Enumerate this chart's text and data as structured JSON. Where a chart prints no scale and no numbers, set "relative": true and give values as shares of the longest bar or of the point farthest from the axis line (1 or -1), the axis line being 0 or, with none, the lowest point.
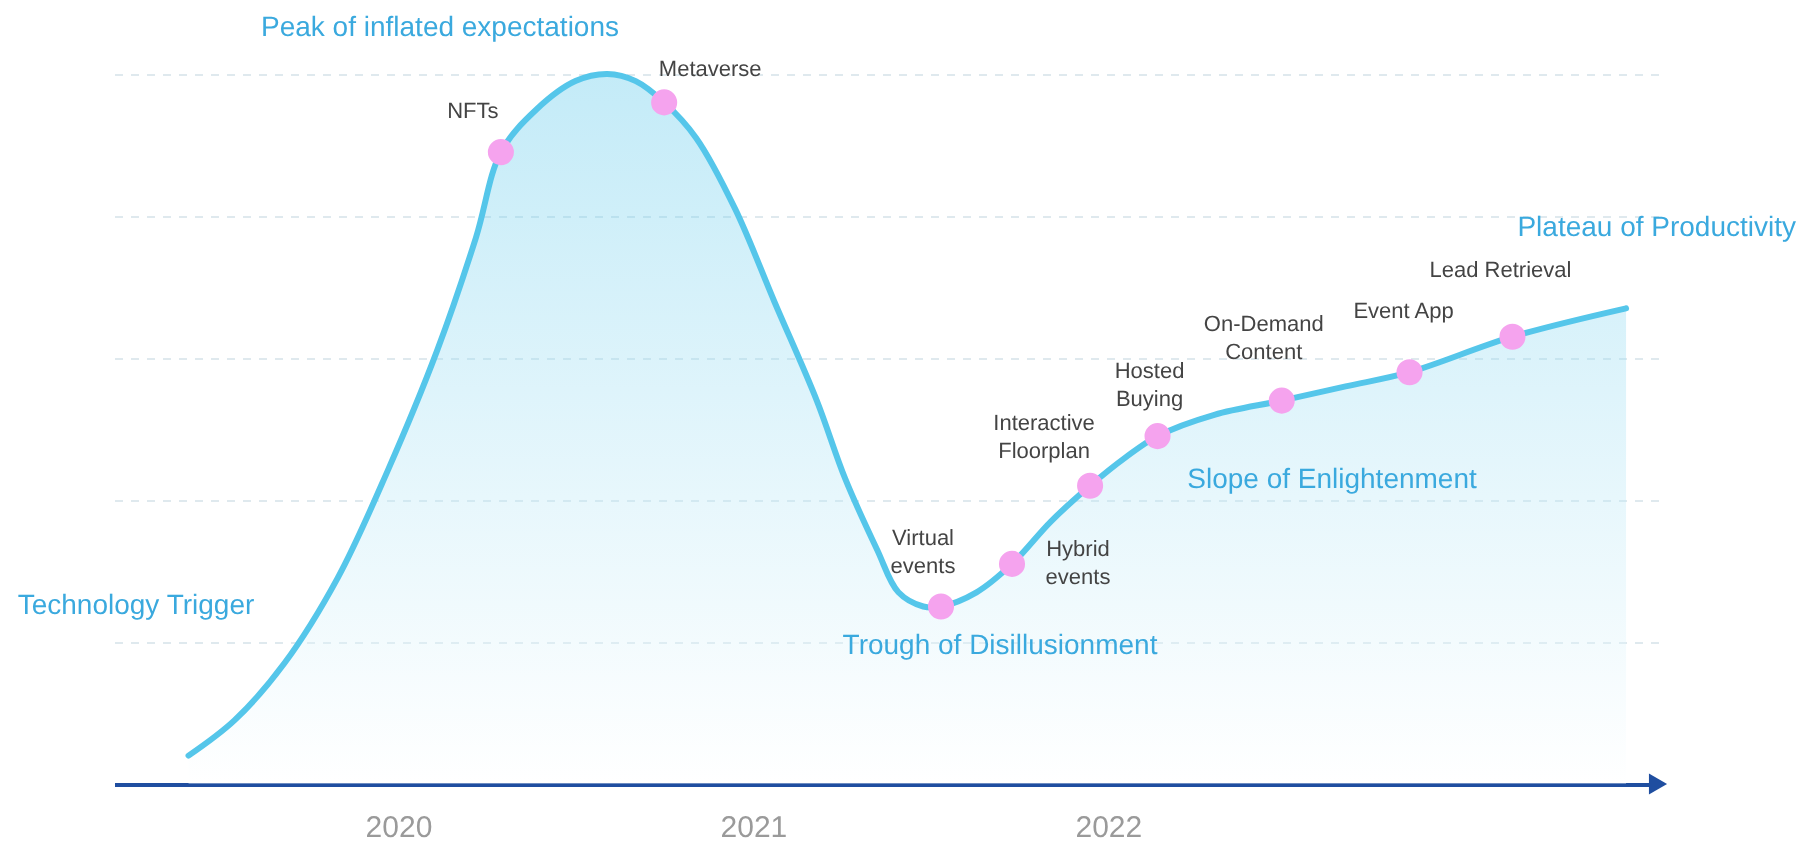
{
  "chart_data": {
    "type": "area",
    "relative": true,
    "grid": "y",
    "xlim": [
      2019.2,
      2023.55
    ],
    "xticks": [
      2020,
      2021,
      2022
    ],
    "x": [
      2019.41,
      2019.54,
      2019.68,
      2019.83,
      2019.97,
      2020.11,
      2020.22,
      2020.29,
      2020.39,
      2020.5,
      2020.59,
      2020.67,
      2020.75,
      2020.84,
      2020.95,
      2021.06,
      2021.18,
      2021.26,
      2021.35,
      2021.41,
      2021.48,
      2021.53,
      2021.63,
      2021.73,
      2021.84,
      2021.95,
      2022.05,
      2022.14,
      2022.3,
      2022.49,
      2022.67,
      2022.85,
      2023.14,
      2023.46
    ],
    "series": [
      {
        "color": "#55c6ea",
        "values": [
          0.04,
          0.09,
          0.17,
          0.29,
          0.44,
          0.61,
          0.77,
          0.89,
          0.95,
          0.99,
          1.0,
          0.99,
          0.96,
          0.91,
          0.81,
          0.68,
          0.54,
          0.43,
          0.33,
          0.27,
          0.25,
          0.25,
          0.27,
          0.31,
          0.37,
          0.42,
          0.46,
          0.49,
          0.52,
          0.54,
          0.56,
          0.58,
          0.63,
          0.67
        ]
      },
      {
        "type": "scatter",
        "color": "#f5a3ee",
        "x": [
          2020.29,
          2020.75,
          2021.53,
          2021.73,
          2021.95,
          2022.14,
          2022.49,
          2022.85,
          2023.14
        ],
        "values": [
          0.89,
          0.96,
          0.25,
          0.31,
          0.42,
          0.49,
          0.54,
          0.58,
          0.63
        ]
      }
    ],
    "annotations": [
      "Peak of inflated expectations",
      "Technology Trigger",
      "Trough of Disillusionment",
      "Slope of Enlightenment",
      "Plateau of Productivity",
      {
        "text": "NFTs",
        "x": 2020.29,
        "y": 0.89
      },
      {
        "text": "Metaverse",
        "x": 2020.75,
        "y": 0.96
      },
      {
        "text": "Virtual\nevents",
        "x": 2021.53,
        "y": 0.25
      },
      {
        "text": "Hybrid\nevents",
        "x": 2021.73,
        "y": 0.31
      },
      {
        "text": "Interactive\nFloorplan",
        "x": 2021.95,
        "y": 0.42
      },
      {
        "text": "Hosted\nBuying",
        "x": 2022.14,
        "y": 0.49
      },
      {
        "text": "On-Demand\nContent",
        "x": 2022.49,
        "y": 0.54
      },
      {
        "text": "Event App",
        "x": 2022.85,
        "y": 0.58
      },
      {
        "text": "Lead Retrieval",
        "x": 2023.14,
        "y": 0.63
      }
    ]
  }
}
